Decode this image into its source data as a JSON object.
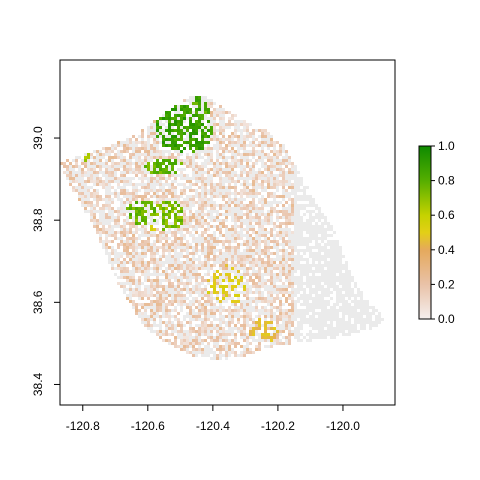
{
  "chart_data": {
    "type": "heatmap",
    "title": "",
    "xlabel": "",
    "ylabel": "",
    "xlim": [
      -120.87,
      -119.84
    ],
    "ylim": [
      38.35,
      39.19
    ],
    "x_ticks": [
      {
        "value": -120.8,
        "label": "-120.8"
      },
      {
        "value": -120.6,
        "label": "-120.6"
      },
      {
        "value": -120.4,
        "label": "-120.4"
      },
      {
        "value": -120.2,
        "label": "-120.2"
      },
      {
        "value": -120.0,
        "label": "-120.0"
      }
    ],
    "y_ticks": [
      {
        "value": 38.4,
        "label": "38.4"
      },
      {
        "value": 38.6,
        "label": "38.6"
      },
      {
        "value": 38.8,
        "label": "38.8"
      },
      {
        "value": 39.0,
        "label": "39.0"
      }
    ],
    "legend": {
      "placement": "right",
      "range": [
        0,
        1
      ],
      "ticks": [
        {
          "value": 0.0,
          "label": "0.0"
        },
        {
          "value": 0.2,
          "label": "0.2"
        },
        {
          "value": 0.4,
          "label": "0.4"
        },
        {
          "value": 0.6,
          "label": "0.6"
        },
        {
          "value": 0.8,
          "label": "0.8"
        },
        {
          "value": 1.0,
          "label": "1.0"
        }
      ],
      "colors": [
        {
          "value": 0.0,
          "color": "#f5efee"
        },
        {
          "value": 0.2,
          "color": "#e9c2a8"
        },
        {
          "value": 0.4,
          "color": "#e5a95c"
        },
        {
          "value": 0.5,
          "color": "#e3cf16"
        },
        {
          "value": 0.6,
          "color": "#c5d200"
        },
        {
          "value": 0.8,
          "color": "#55ae00"
        },
        {
          "value": 1.0,
          "color": "#0e8a00"
        }
      ]
    },
    "nodata_color": "#ebebeb",
    "region_outline": [
      [
        -120.87,
        38.94
      ],
      [
        -120.8,
        38.96
      ],
      [
        -120.72,
        38.98
      ],
      [
        -120.63,
        39.01
      ],
      [
        -120.55,
        39.06
      ],
      [
        -120.47,
        39.1
      ],
      [
        -120.42,
        39.1
      ],
      [
        -120.36,
        39.07
      ],
      [
        -120.3,
        39.04
      ],
      [
        -120.24,
        39.02
      ],
      [
        -120.18,
        38.98
      ],
      [
        -120.13,
        38.91
      ],
      [
        -120.08,
        38.84
      ],
      [
        -120.03,
        38.78
      ],
      [
        -120.0,
        38.72
      ],
      [
        -119.97,
        38.66
      ],
      [
        -119.94,
        38.62
      ],
      [
        -119.9,
        38.59
      ],
      [
        -119.87,
        38.56
      ],
      [
        -119.9,
        38.54
      ],
      [
        -119.98,
        38.52
      ],
      [
        -120.06,
        38.51
      ],
      [
        -120.14,
        38.5
      ],
      [
        -120.22,
        38.49
      ],
      [
        -120.3,
        38.47
      ],
      [
        -120.38,
        38.46
      ],
      [
        -120.46,
        38.47
      ],
      [
        -120.54,
        38.5
      ],
      [
        -120.61,
        38.54
      ],
      [
        -120.66,
        38.6
      ],
      [
        -120.7,
        38.66
      ],
      [
        -120.73,
        38.72
      ],
      [
        -120.77,
        38.79
      ],
      [
        -120.82,
        38.86
      ],
      [
        -120.85,
        38.9
      ]
    ],
    "green_patches": [
      {
        "center": [
          -120.49,
          39.02
        ],
        "radius": [
          0.09,
          0.06
        ],
        "value": 0.95
      },
      {
        "center": [
          -120.45,
          39.06
        ],
        "radius": [
          0.04,
          0.04
        ],
        "value": 0.9
      },
      {
        "center": [
          -120.55,
          38.93
        ],
        "radius": [
          0.06,
          0.02
        ],
        "value": 0.85
      },
      {
        "center": [
          -120.62,
          38.82
        ],
        "radius": [
          0.05,
          0.03
        ],
        "value": 0.85
      },
      {
        "center": [
          -120.54,
          38.81
        ],
        "radius": [
          0.05,
          0.04
        ],
        "value": 0.8
      },
      {
        "center": [
          -120.8,
          38.96
        ],
        "radius": [
          0.02,
          0.02
        ],
        "value": 0.75
      }
    ],
    "yellow_patches": [
      {
        "center": [
          -120.36,
          38.64
        ],
        "radius": [
          0.06,
          0.05
        ],
        "value": 0.55
      },
      {
        "center": [
          -120.25,
          38.53
        ],
        "radius": [
          0.05,
          0.03
        ],
        "value": 0.5
      },
      {
        "center": [
          -120.58,
          38.8
        ],
        "radius": [
          0.04,
          0.03
        ],
        "value": 0.6
      }
    ]
  }
}
